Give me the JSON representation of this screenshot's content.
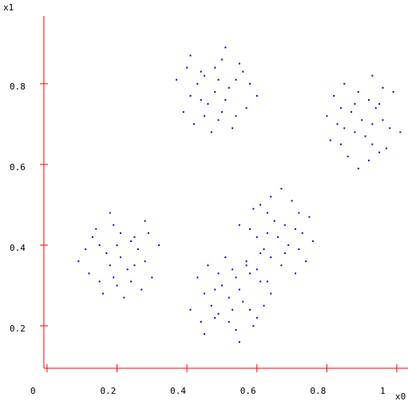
{
  "chart_data": {
    "type": "scatter",
    "x_label": "x0",
    "y_label": "x1",
    "xlim": [
      -0.009,
      1.032
    ],
    "ylim": [
      0.095,
      0.968
    ],
    "xticks": [
      0,
      0.2,
      0.4,
      0.6,
      0.8,
      1
    ],
    "yticks": [
      0.2,
      0.4,
      0.6,
      0.8
    ],
    "axis_color": "#ff0000",
    "series": [
      {
        "color": "#0000ff",
        "x": [
          0.48,
          0.51,
          0.44,
          0.54,
          0.41,
          0.5,
          0.45,
          0.57,
          0.4,
          0.53,
          0.49,
          0.46,
          0.52,
          0.43,
          0.55,
          0.39,
          0.58,
          0.47,
          0.51,
          0.42,
          0.6,
          0.37,
          0.5,
          0.45,
          0.54,
          0.41,
          0.56,
          0.44,
          0.49,
          0.48,
          0.9,
          0.88,
          0.95,
          0.93,
          0.89,
          0.98,
          0.84,
          0.86,
          0.96,
          0.81,
          0.93,
          0.87,
          0.91,
          0.92,
          0.97,
          0.85,
          0.92,
          0.8,
          1.01,
          0.82,
          0.89,
          0.93,
          0.85,
          0.94,
          0.84,
          0.99,
          0.95,
          0.88,
          0.83,
          0.96,
          0.21,
          0.18,
          0.25,
          0.15,
          0.28,
          0.19,
          0.24,
          0.12,
          0.29,
          0.16,
          0.2,
          0.23,
          0.17,
          0.26,
          0.14,
          0.3,
          0.11,
          0.22,
          0.18,
          0.27,
          0.09,
          0.32,
          0.19,
          0.24,
          0.15,
          0.28,
          0.13,
          0.25,
          0.2,
          0.21,
          0.66,
          0.68,
          0.61,
          0.63,
          0.67,
          0.58,
          0.72,
          0.7,
          0.6,
          0.75,
          0.63,
          0.69,
          0.65,
          0.64,
          0.59,
          0.71,
          0.64,
          0.76,
          0.55,
          0.74,
          0.67,
          0.63,
          0.71,
          0.62,
          0.72,
          0.57,
          0.61,
          0.68,
          0.73,
          0.6,
          0.52,
          0.55,
          0.48,
          0.58,
          0.45,
          0.54,
          0.49,
          0.61,
          0.44,
          0.57,
          0.53,
          0.5,
          0.56,
          0.47,
          0.59,
          0.43,
          0.62,
          0.51,
          0.55,
          0.46,
          0.64,
          0.41,
          0.54,
          0.49,
          0.58,
          0.45,
          0.6,
          0.48,
          0.53,
          0.52
        ],
        "values": [
          0.78,
          0.76,
          0.83,
          0.81,
          0.77,
          0.86,
          0.72,
          0.74,
          0.84,
          0.69,
          0.81,
          0.75,
          0.79,
          0.8,
          0.85,
          0.73,
          0.8,
          0.68,
          0.89,
          0.7,
          0.77,
          0.81,
          0.73,
          0.82,
          0.72,
          0.87,
          0.83,
          0.76,
          0.71,
          0.84,
          0.71,
          0.68,
          0.75,
          0.65,
          0.78,
          0.69,
          0.74,
          0.62,
          0.79,
          0.66,
          0.7,
          0.73,
          0.67,
          0.76,
          0.64,
          0.8,
          0.61,
          0.72,
          0.68,
          0.77,
          0.59,
          0.82,
          0.69,
          0.74,
          0.65,
          0.78,
          0.63,
          0.75,
          0.7,
          0.71,
          0.37,
          0.35,
          0.42,
          0.4,
          0.36,
          0.45,
          0.31,
          0.33,
          0.43,
          0.28,
          0.4,
          0.34,
          0.38,
          0.39,
          0.44,
          0.32,
          0.39,
          0.27,
          0.48,
          0.29,
          0.36,
          0.4,
          0.32,
          0.41,
          0.31,
          0.46,
          0.42,
          0.35,
          0.3,
          0.43,
          0.42,
          0.45,
          0.38,
          0.48,
          0.35,
          0.44,
          0.39,
          0.51,
          0.34,
          0.47,
          0.43,
          0.4,
          0.46,
          0.37,
          0.49,
          0.33,
          0.52,
          0.41,
          0.45,
          0.36,
          0.54,
          0.31,
          0.44,
          0.39,
          0.48,
          0.35,
          0.5,
          0.38,
          0.43,
          0.42,
          0.27,
          0.29,
          0.22,
          0.24,
          0.28,
          0.19,
          0.33,
          0.31,
          0.21,
          0.36,
          0.24,
          0.3,
          0.26,
          0.25,
          0.2,
          0.32,
          0.25,
          0.37,
          0.16,
          0.35,
          0.28,
          0.24,
          0.32,
          0.23,
          0.33,
          0.18,
          0.22,
          0.29,
          0.34,
          0.21
        ]
      }
    ]
  }
}
